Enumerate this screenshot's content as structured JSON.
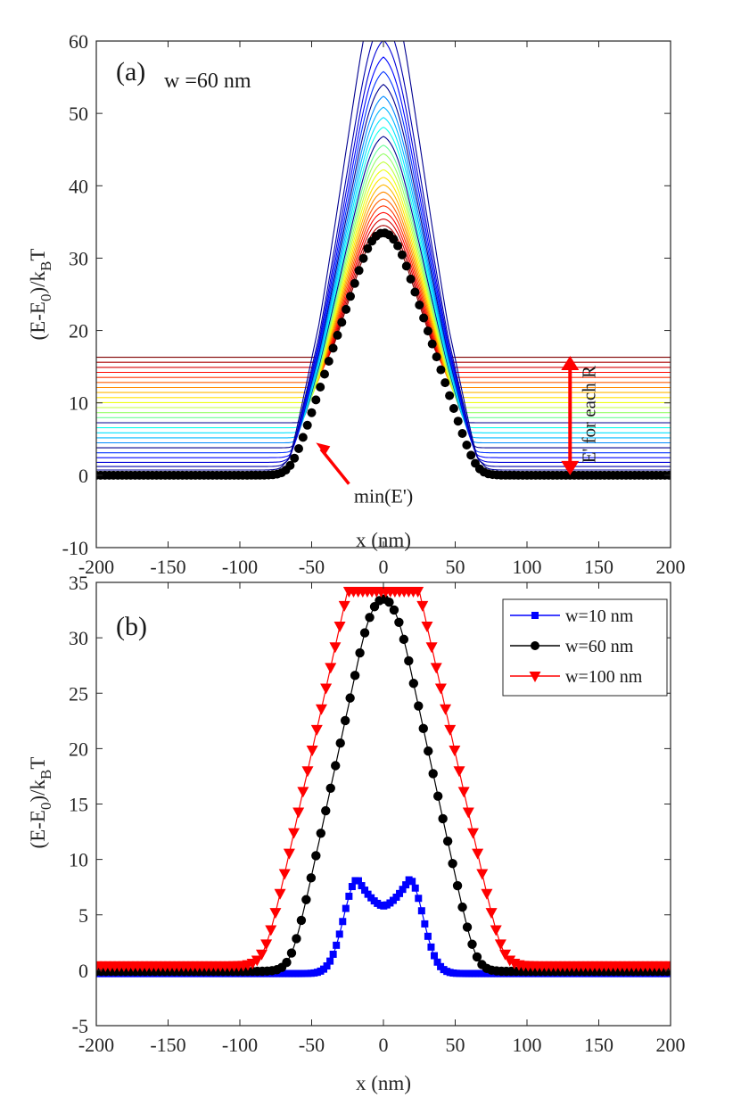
{
  "chart_data": [
    {
      "type": "line",
      "panel_label": "(a)",
      "title": "w =60 nm",
      "xlabel": "x (nm)",
      "ylabel": "(E-E0)/kBT",
      "ylabel_parts": {
        "pre": "(E-E",
        "sub1": "0",
        "mid": ")/k",
        "sub2": "B",
        "post": "T"
      },
      "xlim": [
        -200,
        200
      ],
      "ylim": [
        -10,
        60
      ],
      "xticks": [
        -200,
        -150,
        -100,
        -50,
        0,
        50,
        100,
        150,
        200
      ],
      "yticks": [
        -10,
        0,
        10,
        20,
        30,
        40,
        50,
        60
      ],
      "grid": false,
      "colormap": "jet",
      "family_description": "Energy profiles E' for each R (jet colormap, blue to red); plateau level rises from ~0 to ~16.3 while peak decreases from ~56.7 to ~33.5",
      "family": {
        "count": 24,
        "plateau_range": [
          0.3,
          16.3
        ],
        "peak_range": [
          56.7,
          33.6
        ],
        "half_width_range": [
          60,
          38
        ]
      },
      "min_curve": {
        "name": "min(E')",
        "color": "#000000",
        "marker": "circle",
        "peak": 33.5,
        "baseline": 0,
        "description": "Gaussian-like barrier centered at x=0, width ~45 nm"
      },
      "annotations": [
        {
          "text": "min(E')",
          "x": 0,
          "y": -3,
          "arrow_to": [
            -47,
            4
          ],
          "color": "#ff0000"
        },
        {
          "text": "E' for each R",
          "x": 140,
          "y": 8,
          "rotation": -90,
          "double_arrow_from": [
            130,
            0
          ],
          "double_arrow_to": [
            130,
            16.5
          ],
          "color": "#ff0000"
        }
      ]
    },
    {
      "type": "line",
      "panel_label": "(b)",
      "xlabel": "x (nm)",
      "ylabel": "(E-E0)/kBT",
      "ylabel_parts": {
        "pre": "(E-E",
        "sub1": "0",
        "mid": ")/k",
        "sub2": "B",
        "post": "T"
      },
      "xlim": [
        -200,
        200
      ],
      "ylim": [
        -5,
        35
      ],
      "xticks": [
        -200,
        -150,
        -100,
        -50,
        0,
        50,
        100,
        150,
        200
      ],
      "yticks": [
        -5,
        0,
        5,
        10,
        15,
        20,
        25,
        30,
        35
      ],
      "grid": false,
      "legend_position": "top-right",
      "series": [
        {
          "name": "w=10 nm",
          "color": "#0000ff",
          "marker": "square",
          "baseline": -0.3,
          "peaks_x": [
            -17,
            18
          ],
          "peaks_y": 8.5,
          "center_dip": 6.1
        },
        {
          "name": "w=60 nm",
          "color": "#000000",
          "marker": "circle",
          "baseline": -0.1,
          "peak": 33.5
        },
        {
          "name": "w=100 nm",
          "color": "#ff0000",
          "marker": "triangle-down",
          "baseline": 0.4,
          "plateau": 34.2,
          "plateau_x": [
            -25,
            25
          ]
        }
      ]
    }
  ]
}
